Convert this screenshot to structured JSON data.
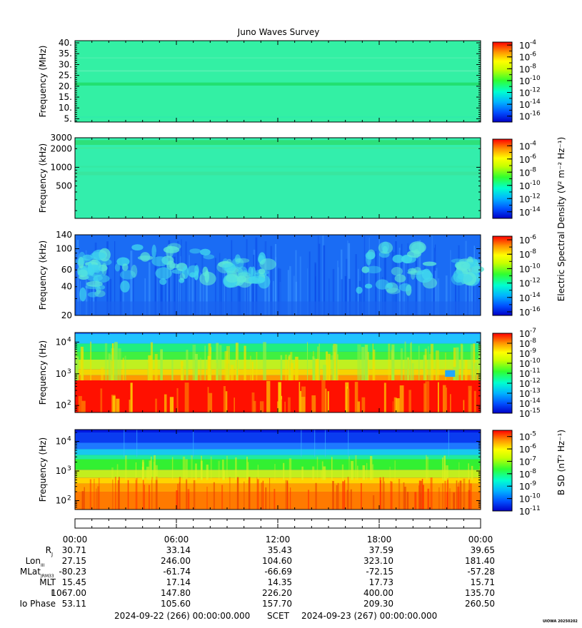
{
  "title": "Juno Waves Survey",
  "chart_data": [
    {
      "type": "heatmap",
      "panel": "hfr-high",
      "ylabel": "Frequency (MHz)",
      "yscale": "linear",
      "ylim": [
        3.5,
        41
      ],
      "yticks": [
        5,
        10,
        15,
        20,
        25,
        30,
        35,
        40
      ],
      "yticklabels": [
        "5.",
        "10.",
        "15.",
        "20.",
        "25.",
        "30.",
        "35.",
        "40."
      ],
      "colorbar": {
        "ticks": [
          -4,
          -6,
          -8,
          -10,
          -12,
          -14,
          -16
        ],
        "range": [
          -17,
          -3.5
        ],
        "label": ""
      },
      "colormap": [
        "#0000c8",
        "#00aaff",
        "#00ffff",
        "#00ff40",
        "#ffff00",
        "#ff8000",
        "#ff0000"
      ],
      "background_level": -12.5,
      "features": [
        "enhanced band near 21 MHz",
        "faint bands near 27 and 33 MHz"
      ]
    },
    {
      "type": "heatmap",
      "panel": "hfr-low",
      "ylabel": "Frequency (kHz)",
      "yscale": "log",
      "ylim": [
        150,
        3000
      ],
      "yticks": [
        500,
        1000,
        2000,
        3000
      ],
      "yticklabels": [
        "500",
        "1000",
        "2000",
        "3000"
      ],
      "colorbar": {
        "ticks": [
          -4,
          -6,
          -8,
          -10,
          -12,
          -14
        ],
        "range": [
          -15,
          -3
        ],
        "label": "Electric Spectral Density (V² m⁻² Hz⁻¹)"
      },
      "background_level": -12.3,
      "features": [
        "enhanced band near 2500 kHz",
        "faint band near 800 kHz"
      ]
    },
    {
      "type": "heatmap",
      "panel": "lfr-high",
      "ylabel": "Frequency (kHz)",
      "yscale": "log",
      "ylim": [
        20,
        140
      ],
      "yticks": [
        20,
        40,
        60,
        100,
        140
      ],
      "yticklabels": [
        "20",
        "40",
        "60",
        "100",
        "140"
      ],
      "colorbar": {
        "ticks": [
          -6,
          -8,
          -10,
          -12,
          -14,
          -16
        ],
        "range": [
          -16.5,
          -5.5
        ],
        "label": ""
      },
      "background_level": -13.5,
      "features": [
        "patchy cyan emission 02:00-08:00 and 17:00-21:00",
        "vertical striations throughout"
      ]
    },
    {
      "type": "heatmap",
      "panel": "lfr-low",
      "ylabel": "Frequency (Hz)",
      "yscale": "log",
      "ylim": [
        60,
        20000
      ],
      "yticks": [
        100,
        1000,
        10000
      ],
      "yticklabels": [
        "10",
        "10",
        "10"
      ],
      "ytickexp": [
        "2",
        "3",
        "4"
      ],
      "colorbar": {
        "ticks": [
          -7,
          -8,
          -9,
          -10,
          -11,
          -12,
          -13,
          -14,
          -15
        ],
        "range": [
          -15,
          -7
        ],
        "label": ""
      },
      "features": [
        "intense red emission below ~600 Hz",
        "green/yellow spikes up to ~10 kHz"
      ]
    },
    {
      "type": "heatmap",
      "panel": "magnetic",
      "ylabel": "Frequency (Hz)",
      "yscale": "log",
      "ylim": [
        50,
        25000
      ],
      "yticks": [
        100,
        1000,
        10000
      ],
      "yticklabels": [
        "10",
        "10",
        "10"
      ],
      "ytickexp": [
        "2",
        "3",
        "4"
      ],
      "colorbar": {
        "ticks": [
          -5,
          -6,
          -7,
          -8,
          -9,
          -10,
          -11
        ],
        "range": [
          -11,
          -4.5
        ],
        "label": "B SD (nT² Hz⁻¹)"
      },
      "features": [
        "orange/red emission below ~300 Hz",
        "green band ~1-3 kHz",
        "blue above ~5 kHz"
      ]
    }
  ],
  "colorbar_base": "10",
  "xaxis": {
    "tick_labels": [
      "00:00",
      "06:00",
      "12:00",
      "18:00",
      "00:00"
    ],
    "xlim_hours": [
      0,
      24
    ]
  },
  "ephemeris": [
    {
      "label": "R",
      "sub": "J",
      "values": [
        "30.71",
        "33.14",
        "35.43",
        "37.59",
        "39.65"
      ]
    },
    {
      "label": "Lon",
      "sub": "III",
      "values": [
        "27.15",
        "246.00",
        "104.60",
        "323.10",
        "181.40"
      ]
    },
    {
      "label": "MLat",
      "sub": "JRM33",
      "values": [
        "-80.23",
        "-61.74",
        "-66.69",
        "-72.15",
        "-57.28"
      ]
    },
    {
      "label": "MLT",
      "sub": "",
      "values": [
        "15.45",
        "17.14",
        "14.35",
        "17.73",
        "15.71"
      ]
    },
    {
      "label": "L",
      "sub": "",
      "values": [
        "1067.00",
        "147.80",
        "226.20",
        "400.00",
        "135.70"
      ]
    },
    {
      "label": "Io Phase",
      "sub": "",
      "values": [
        "53.11",
        "105.60",
        "157.70",
        "209.30",
        "260.50"
      ]
    }
  ],
  "footer": {
    "start": "2024-09-22 (266) 00:00:00.000",
    "scet": "SCET",
    "end": "2024-09-23 (267) 00:00:00.000",
    "stamp": "UIOWA 20250202"
  }
}
